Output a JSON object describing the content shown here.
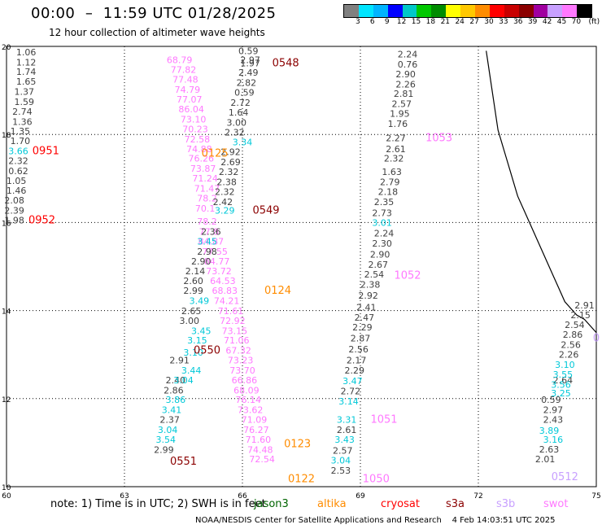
{
  "header": {
    "title": "00:00  –  11:59 UTC 01/28/2025",
    "subtitle": "12 hour collection of altimeter wave heights"
  },
  "colorbar": {
    "colors": [
      "#808080",
      "#00e5ff",
      "#00b4ff",
      "#0000ff",
      "#00c8c8",
      "#00c800",
      "#008c00",
      "#ffff00",
      "#ffc800",
      "#ff8c00",
      "#ff0000",
      "#c80000",
      "#8b0000",
      "#a000a0",
      "#c8a0ff",
      "#ff78ff",
      "#000000"
    ],
    "ticks": [
      "3",
      "6",
      "9",
      "12",
      "15",
      "18",
      "21",
      "24",
      "27",
      "30",
      "33",
      "36",
      "39",
      "42",
      "45",
      "70",
      "(ft)"
    ]
  },
  "footer": {
    "note": "note: 1) Time is in UTC; 2) SWH is in feet",
    "satellites": [
      {
        "name": "jason3",
        "color": "#006400"
      },
      {
        "name": "altika",
        "color": "#ff8c00"
      },
      {
        "name": "cryosat",
        "color": "#ff0000"
      },
      {
        "name": "s3a",
        "color": "#8b0000"
      },
      {
        "name": "s3b",
        "color": "#c8a0ff"
      },
      {
        "name": "swot",
        "color": "#ff78ff"
      }
    ],
    "credit": "NOAA/NESDIS Center for Satellite Applications and Research    4 Feb 14:03:51 UTC 2025"
  },
  "chart_data": {
    "type": "scatter",
    "xlim": [
      60,
      75
    ],
    "ylim": [
      10,
      20
    ],
    "xticks": [
      "60",
      "63",
      "66",
      "69",
      "72",
      "75"
    ],
    "yticks": [
      "10",
      "12",
      "14",
      "16",
      "18",
      "20"
    ],
    "grid": true,
    "series": [
      {
        "name": "track-gray-left",
        "color": "#404040",
        "points": [
          {
            "x": 60.5,
            "y": 19.8,
            "v": "1.06"
          },
          {
            "x": 60.5,
            "y": 19.57,
            "v": "1.12"
          },
          {
            "x": 60.5,
            "y": 19.35,
            "v": "1.74"
          },
          {
            "x": 60.5,
            "y": 19.13,
            "v": "1.65"
          },
          {
            "x": 60.45,
            "y": 18.9,
            "v": "1.37"
          },
          {
            "x": 60.45,
            "y": 18.67,
            "v": "1.59"
          },
          {
            "x": 60.4,
            "y": 18.45,
            "v": "2.74"
          },
          {
            "x": 60.4,
            "y": 18.22,
            "v": "1.36"
          },
          {
            "x": 60.35,
            "y": 18.0,
            "v": "1.35"
          },
          {
            "x": 60.35,
            "y": 17.78,
            "v": "1.70"
          },
          {
            "x": 60.3,
            "y": 17.33,
            "v": "2.32"
          },
          {
            "x": 60.3,
            "y": 17.1,
            "v": "0.62"
          },
          {
            "x": 60.25,
            "y": 16.88,
            "v": "1.05"
          },
          {
            "x": 60.25,
            "y": 16.65,
            "v": "1.46"
          },
          {
            "x": 60.2,
            "y": 16.43,
            "v": "2.08"
          },
          {
            "x": 60.2,
            "y": 16.2,
            "v": "2.39"
          },
          {
            "x": 60.2,
            "y": 15.98,
            "v": "1.98"
          }
        ]
      },
      {
        "name": "track-cyan-left",
        "color": "#00c8d8",
        "points": [
          {
            "x": 60.3,
            "y": 17.55,
            "v": "3.66"
          }
        ]
      },
      {
        "name": "track-swot-center",
        "color": "#ff78ff",
        "points": [
          {
            "x": 64.4,
            "y": 19.62,
            "v": "68.79"
          },
          {
            "x": 64.5,
            "y": 19.4,
            "v": "77.82"
          },
          {
            "x": 64.55,
            "y": 19.18,
            "v": "77.48"
          },
          {
            "x": 64.6,
            "y": 18.95,
            "v": "74.79"
          },
          {
            "x": 64.65,
            "y": 18.72,
            "v": "77.07"
          },
          {
            "x": 64.7,
            "y": 18.5,
            "v": "86.04"
          },
          {
            "x": 64.75,
            "y": 18.27,
            "v": "73.10"
          },
          {
            "x": 64.8,
            "y": 18.05,
            "v": "70.23"
          },
          {
            "x": 64.85,
            "y": 17.82,
            "v": "72.58"
          },
          {
            "x": 64.9,
            "y": 17.6,
            "v": "74.88"
          },
          {
            "x": 64.95,
            "y": 17.38,
            "v": "76.26"
          },
          {
            "x": 65.0,
            "y": 17.15,
            "v": "73.87"
          },
          {
            "x": 65.05,
            "y": 16.93,
            "v": "71.24"
          },
          {
            "x": 65.1,
            "y": 16.7,
            "v": "71.47"
          },
          {
            "x": 65.1,
            "y": 16.48,
            "v": "78.2"
          },
          {
            "x": 65.05,
            "y": 16.25,
            "v": "70.1"
          },
          {
            "x": 65.1,
            "y": 15.95,
            "v": "78.2"
          },
          {
            "x": 65.15,
            "y": 15.72,
            "v": "77.8"
          },
          {
            "x": 65.2,
            "y": 15.5,
            "v": "84.87"
          },
          {
            "x": 65.3,
            "y": 15.27,
            "v": "77.55"
          },
          {
            "x": 65.35,
            "y": 15.05,
            "v": "84.77"
          },
          {
            "x": 65.4,
            "y": 14.82,
            "v": "73.72"
          },
          {
            "x": 65.5,
            "y": 14.6,
            "v": "64.53"
          },
          {
            "x": 65.55,
            "y": 14.38,
            "v": "68.83"
          },
          {
            "x": 65.6,
            "y": 14.15,
            "v": "74.21"
          },
          {
            "x": 65.7,
            "y": 13.92,
            "v": "71.61"
          },
          {
            "x": 65.75,
            "y": 13.7,
            "v": "72.92"
          },
          {
            "x": 65.8,
            "y": 13.47,
            "v": "73.15"
          },
          {
            "x": 65.85,
            "y": 13.25,
            "v": "71.06"
          },
          {
            "x": 65.9,
            "y": 13.02,
            "v": "67.32"
          },
          {
            "x": 65.95,
            "y": 12.8,
            "v": "73.23"
          },
          {
            "x": 66.0,
            "y": 12.57,
            "v": "73.70"
          },
          {
            "x": 66.05,
            "y": 12.35,
            "v": "66.86"
          },
          {
            "x": 66.1,
            "y": 12.12,
            "v": "68.09"
          },
          {
            "x": 66.15,
            "y": 11.9,
            "v": "76.14"
          },
          {
            "x": 66.2,
            "y": 11.67,
            "v": "73.62"
          },
          {
            "x": 66.3,
            "y": 11.45,
            "v": "71.09"
          },
          {
            "x": 66.35,
            "y": 11.22,
            "v": "76.27"
          },
          {
            "x": 66.4,
            "y": 11.0,
            "v": "71.60"
          },
          {
            "x": 66.45,
            "y": 10.77,
            "v": "74.48"
          },
          {
            "x": 66.5,
            "y": 10.55,
            "v": "72.54"
          }
        ]
      },
      {
        "name": "track-gray-center",
        "color": "#404040",
        "points": [
          {
            "x": 66.15,
            "y": 19.82,
            "v": "0.59"
          },
          {
            "x": 66.2,
            "y": 19.62,
            "v": "2.97"
          },
          {
            "x": 66.2,
            "y": 19.55,
            "v": "1.97"
          },
          {
            "x": 66.15,
            "y": 19.33,
            "v": "2.49"
          },
          {
            "x": 66.1,
            "y": 19.1,
            "v": "2.82"
          },
          {
            "x": 66.05,
            "y": 18.88,
            "v": "0.59"
          },
          {
            "x": 65.95,
            "y": 18.65,
            "v": "2.72"
          },
          {
            "x": 65.9,
            "y": 18.43,
            "v": "1.64"
          },
          {
            "x": 65.85,
            "y": 18.2,
            "v": "3.00"
          },
          {
            "x": 65.8,
            "y": 17.98,
            "v": "2.32"
          },
          {
            "x": 65.7,
            "y": 17.53,
            "v": "2.92"
          },
          {
            "x": 65.7,
            "y": 17.3,
            "v": "2.69"
          },
          {
            "x": 65.65,
            "y": 17.08,
            "v": "2.32"
          },
          {
            "x": 65.6,
            "y": 16.85,
            "v": "2.38"
          },
          {
            "x": 65.55,
            "y": 16.63,
            "v": "2.32"
          },
          {
            "x": 65.5,
            "y": 16.4,
            "v": "2.42"
          },
          {
            "x": 65.2,
            "y": 15.72,
            "v": "2.36"
          },
          {
            "x": 65.1,
            "y": 15.27,
            "v": "2.98"
          },
          {
            "x": 64.95,
            "y": 15.05,
            "v": "2.90"
          },
          {
            "x": 64.8,
            "y": 14.82,
            "v": "2.14"
          },
          {
            "x": 64.75,
            "y": 14.6,
            "v": "2.60"
          },
          {
            "x": 64.75,
            "y": 14.38,
            "v": "2.99"
          },
          {
            "x": 64.7,
            "y": 13.92,
            "v": "2.65"
          },
          {
            "x": 64.65,
            "y": 13.7,
            "v": "3.00"
          },
          {
            "x": 64.4,
            "y": 12.8,
            "v": "2.91"
          },
          {
            "x": 64.3,
            "y": 12.35,
            "v": "2.40"
          },
          {
            "x": 64.25,
            "y": 12.12,
            "v": "2.86"
          },
          {
            "x": 64.15,
            "y": 11.45,
            "v": "2.37"
          },
          {
            "x": 64.0,
            "y": 10.77,
            "v": "2.99"
          }
        ]
      },
      {
        "name": "track-cyan-center",
        "color": "#00c8d8",
        "points": [
          {
            "x": 66.0,
            "y": 17.75,
            "v": "3.34"
          },
          {
            "x": 65.55,
            "y": 16.2,
            "v": "3.29"
          },
          {
            "x": 65.1,
            "y": 15.5,
            "v": "3.45"
          },
          {
            "x": 64.9,
            "y": 14.15,
            "v": "3.49"
          },
          {
            "x": 64.95,
            "y": 13.47,
            "v": "3.45"
          },
          {
            "x": 64.85,
            "y": 13.25,
            "v": "3.15"
          },
          {
            "x": 64.75,
            "y": 12.98,
            "v": "3.10"
          },
          {
            "x": 64.7,
            "y": 12.57,
            "v": "3.44"
          },
          {
            "x": 64.5,
            "y": 12.35,
            "v": "3.04"
          },
          {
            "x": 64.3,
            "y": 11.9,
            "v": "3.86"
          },
          {
            "x": 64.2,
            "y": 11.67,
            "v": "3.41"
          },
          {
            "x": 64.1,
            "y": 11.22,
            "v": "3.04"
          },
          {
            "x": 64.05,
            "y": 11.0,
            "v": "3.54"
          }
        ]
      },
      {
        "name": "track-gray-right",
        "color": "#404040",
        "points": [
          {
            "x": 70.2,
            "y": 19.75,
            "v": "2.24"
          },
          {
            "x": 70.2,
            "y": 19.52,
            "v": "0.76"
          },
          {
            "x": 70.15,
            "y": 19.3,
            "v": "2.90"
          },
          {
            "x": 70.15,
            "y": 19.07,
            "v": "2.26"
          },
          {
            "x": 70.1,
            "y": 18.85,
            "v": "2.81"
          },
          {
            "x": 70.05,
            "y": 18.62,
            "v": "2.57"
          },
          {
            "x": 70.0,
            "y": 18.4,
            "v": "1.95"
          },
          {
            "x": 69.95,
            "y": 18.17,
            "v": "1.76"
          },
          {
            "x": 69.9,
            "y": 17.85,
            "v": "2.27"
          },
          {
            "x": 69.9,
            "y": 17.6,
            "v": "2.61"
          },
          {
            "x": 69.85,
            "y": 17.38,
            "v": "2.32"
          },
          {
            "x": 69.8,
            "y": 17.08,
            "v": "1.63"
          },
          {
            "x": 69.75,
            "y": 16.85,
            "v": "2.79"
          },
          {
            "x": 69.7,
            "y": 16.63,
            "v": "2.18"
          },
          {
            "x": 69.6,
            "y": 16.4,
            "v": "2.35"
          },
          {
            "x": 69.55,
            "y": 16.15,
            "v": "2.73"
          },
          {
            "x": 69.6,
            "y": 15.68,
            "v": "2.24"
          },
          {
            "x": 69.55,
            "y": 15.45,
            "v": "2.30"
          },
          {
            "x": 69.5,
            "y": 15.2,
            "v": "2.90"
          },
          {
            "x": 69.45,
            "y": 14.97,
            "v": "2.67"
          },
          {
            "x": 69.35,
            "y": 14.75,
            "v": "2.54"
          },
          {
            "x": 69.25,
            "y": 14.52,
            "v": "2.38"
          },
          {
            "x": 69.2,
            "y": 14.27,
            "v": "2.92"
          },
          {
            "x": 69.15,
            "y": 14.0,
            "v": "2.41"
          },
          {
            "x": 69.1,
            "y": 13.77,
            "v": "2.47"
          },
          {
            "x": 69.05,
            "y": 13.55,
            "v": "2.29"
          },
          {
            "x": 69.0,
            "y": 13.3,
            "v": "2.87"
          },
          {
            "x": 68.95,
            "y": 13.05,
            "v": "2.56"
          },
          {
            "x": 68.9,
            "y": 12.8,
            "v": "2.17"
          },
          {
            "x": 68.85,
            "y": 12.57,
            "v": "2.29"
          },
          {
            "x": 68.75,
            "y": 12.1,
            "v": "2.72"
          },
          {
            "x": 68.65,
            "y": 11.22,
            "v": "2.61"
          },
          {
            "x": 68.55,
            "y": 10.75,
            "v": "2.57"
          },
          {
            "x": 68.5,
            "y": 10.3,
            "v": "2.53"
          }
        ]
      },
      {
        "name": "track-cyan-right",
        "color": "#00c8d8",
        "points": [
          {
            "x": 69.55,
            "y": 15.92,
            "v": "3.01"
          },
          {
            "x": 68.8,
            "y": 12.33,
            "v": "3.47"
          },
          {
            "x": 68.7,
            "y": 11.87,
            "v": "3.14"
          },
          {
            "x": 68.65,
            "y": 11.45,
            "v": "3.31"
          },
          {
            "x": 68.6,
            "y": 11.0,
            "v": "3.43"
          },
          {
            "x": 68.5,
            "y": 10.53,
            "v": "3.04"
          }
        ]
      },
      {
        "name": "track-gray-east",
        "color": "#404040",
        "points": [
          {
            "x": 74.7,
            "y": 14.05,
            "v": "2.91"
          },
          {
            "x": 74.6,
            "y": 13.83,
            "v": "2.15"
          },
          {
            "x": 74.45,
            "y": 13.6,
            "v": "2.54"
          },
          {
            "x": 74.4,
            "y": 13.38,
            "v": "2.86"
          },
          {
            "x": 74.35,
            "y": 13.15,
            "v": "2.56"
          },
          {
            "x": 74.3,
            "y": 12.93,
            "v": "2.26"
          },
          {
            "x": 74.15,
            "y": 12.35,
            "v": "2.64"
          },
          {
            "x": 73.85,
            "y": 11.9,
            "v": "0.59"
          },
          {
            "x": 73.9,
            "y": 11.67,
            "v": "2.97"
          },
          {
            "x": 73.9,
            "y": 11.45,
            "v": "2.43"
          },
          {
            "x": 73.8,
            "y": 10.78,
            "v": "2.63"
          },
          {
            "x": 73.7,
            "y": 10.55,
            "v": "2.01"
          }
        ]
      },
      {
        "name": "track-cyan-east",
        "color": "#00c8d8",
        "points": [
          {
            "x": 74.2,
            "y": 12.7,
            "v": "3.10"
          },
          {
            "x": 74.15,
            "y": 12.48,
            "v": "3.55"
          },
          {
            "x": 74.1,
            "y": 12.25,
            "v": "3.56"
          },
          {
            "x": 74.1,
            "y": 12.05,
            "v": "3.25"
          },
          {
            "x": 73.8,
            "y": 11.2,
            "v": "3.89"
          },
          {
            "x": 73.9,
            "y": 11.0,
            "v": "3.16"
          }
        ]
      }
    ],
    "pass_labels": [
      {
        "text": "0548",
        "x": 67.1,
        "y": 19.55,
        "color": "#8b0000"
      },
      {
        "text": "0951",
        "x": 61.0,
        "y": 17.55,
        "color": "#ff0000"
      },
      {
        "text": "0125",
        "x": 65.3,
        "y": 17.5,
        "color": "#ff8c00"
      },
      {
        "text": "1053",
        "x": 71.0,
        "y": 17.85,
        "color": "#ff78ff"
      },
      {
        "text": "0549",
        "x": 66.6,
        "y": 16.2,
        "color": "#8b0000"
      },
      {
        "text": "0952",
        "x": 60.9,
        "y": 15.98,
        "color": "#ff0000"
      },
      {
        "text": "1052",
        "x": 70.2,
        "y": 14.72,
        "color": "#ff78ff"
      },
      {
        "text": "0124",
        "x": 66.9,
        "y": 14.38,
        "color": "#ff8c00"
      },
      {
        "text": "0550",
        "x": 65.1,
        "y": 13.02,
        "color": "#8b0000"
      },
      {
        "text": "1051",
        "x": 69.6,
        "y": 11.45,
        "color": "#ff78ff"
      },
      {
        "text": "0123",
        "x": 67.4,
        "y": 10.9,
        "color": "#ff8c00"
      },
      {
        "text": "0551",
        "x": 64.5,
        "y": 10.5,
        "color": "#8b0000"
      },
      {
        "text": "1050",
        "x": 69.4,
        "y": 10.1,
        "color": "#ff78ff"
      },
      {
        "text": "0122",
        "x": 67.5,
        "y": 10.1,
        "color": "#ff8c00"
      },
      {
        "text": "0512",
        "x": 74.2,
        "y": 10.15,
        "color": "#c8a0ff"
      },
      {
        "text": "0",
        "x": 75.0,
        "y": 13.3,
        "color": "#c8a0ff"
      }
    ]
  }
}
